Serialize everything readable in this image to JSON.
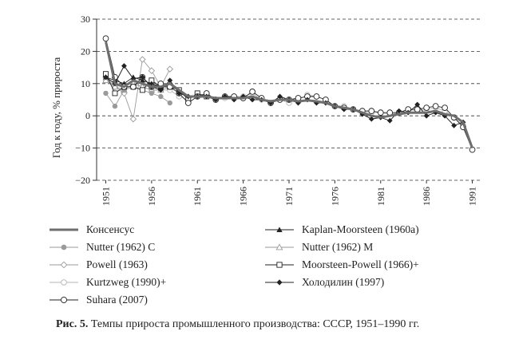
{
  "chart_data": {
    "type": "line",
    "ylabel": "Год к году, % прироста",
    "xlabel": "",
    "xlim": [
      1950,
      1992
    ],
    "ylim": [
      -20,
      30
    ],
    "yticks": [
      "30",
      "20",
      "10",
      "0",
      "−10",
      "−20"
    ],
    "xticks": [
      "1951",
      "1956",
      "1961",
      "1966",
      "1971",
      "1976",
      "1981",
      "1986",
      "1991"
    ],
    "grid": "horizontal-dashed",
    "legend_position": "bottom",
    "series": [
      {
        "name": "Консенсус",
        "style": "consensus",
        "x": [
          1951,
          1952,
          1953,
          1954,
          1955,
          1956,
          1957,
          1958,
          1959,
          1960,
          1961,
          1962,
          1963,
          1964,
          1965,
          1966,
          1967,
          1968,
          1969,
          1970,
          1971,
          1972,
          1973,
          1974,
          1975,
          1976,
          1977,
          1978,
          1979,
          1980,
          1981,
          1982,
          1983,
          1984,
          1985,
          1986,
          1987,
          1988,
          1989,
          1990,
          1991
        ],
        "y": [
          23,
          10,
          9,
          11,
          10,
          9,
          9,
          10,
          8,
          6,
          6,
          6,
          5.5,
          5.5,
          5.5,
          5.5,
          6,
          5,
          4.5,
          5,
          5,
          4.5,
          4.8,
          4.5,
          4,
          3,
          2.5,
          2,
          1,
          0,
          -0.5,
          0,
          0.5,
          1,
          1,
          1,
          1.5,
          0.5,
          0,
          -2,
          -10
        ]
      },
      {
        "name": "Kaplan-Moorsteen (1960a)",
        "style": "kaplan",
        "x": [
          1951,
          1952,
          1953,
          1954,
          1955,
          1956,
          1957,
          1958
        ],
        "y": [
          12,
          11,
          10,
          12,
          11,
          10,
          9,
          9
        ]
      },
      {
        "name": "Nutter (1962) C",
        "style": "nutterc",
        "x": [
          1951,
          1952,
          1953,
          1954,
          1955,
          1956,
          1957,
          1958
        ],
        "y": [
          7,
          3,
          8,
          9,
          8,
          7,
          6,
          4
        ]
      },
      {
        "name": "Nutter (1962) M",
        "style": "nutterm",
        "x": [
          1951,
          1952,
          1953,
          1954,
          1955,
          1956,
          1957,
          1958
        ],
        "y": [
          11,
          9,
          8,
          10,
          9,
          8,
          8,
          9
        ]
      },
      {
        "name": "Powell (1963)",
        "style": "powell",
        "x": [
          1951,
          1952,
          1953,
          1954,
          1955,
          1956,
          1957,
          1958
        ],
        "y": [
          12,
          9,
          7,
          -1,
          17.5,
          14,
          9,
          14.5
        ]
      },
      {
        "name": "Moorsteen-Powell (1966)+",
        "style": "mp",
        "x": [
          1951,
          1952,
          1953,
          1954,
          1955,
          1956,
          1957,
          1958,
          1959,
          1960,
          1961,
          1962
        ],
        "y": [
          13,
          7,
          9,
          9,
          8,
          11,
          9,
          9,
          8,
          5,
          7,
          6
        ]
      },
      {
        "name": "Kurtzweg (1990)+",
        "style": "kurtzweg",
        "x": [
          1951,
          1952,
          1953,
          1954,
          1955,
          1956,
          1957,
          1958,
          1959,
          1960,
          1961,
          1962,
          1963,
          1964,
          1965,
          1966,
          1967,
          1968,
          1969,
          1970,
          1971,
          1972,
          1973,
          1974,
          1975,
          1976,
          1977,
          1978,
          1979,
          1980,
          1981,
          1982,
          1983,
          1984,
          1985,
          1986,
          1987,
          1988,
          1989,
          1990
        ],
        "y": [
          11,
          9,
          8,
          10,
          9,
          8,
          8,
          8,
          6,
          5,
          7,
          6,
          5,
          5.5,
          6,
          6,
          7,
          5,
          4,
          5,
          4,
          5,
          6.5,
          6,
          5,
          3,
          3,
          2,
          1.5,
          1,
          1,
          0.5,
          1,
          2,
          1.5,
          2,
          2.5,
          1.5,
          -0.5,
          -3
        ]
      },
      {
        "name": "Холодилин (1997)",
        "style": "kholodilin",
        "x": [
          1951,
          1952,
          1953,
          1954,
          1955,
          1956,
          1957,
          1958,
          1959,
          1960,
          1961,
          1962,
          1963,
          1964,
          1965,
          1966,
          1967,
          1968,
          1969,
          1970,
          1971,
          1972,
          1973,
          1974,
          1975,
          1976,
          1977,
          1978,
          1979,
          1980,
          1981,
          1982,
          1983,
          1984,
          1985,
          1986,
          1987,
          1988,
          1989,
          1990
        ],
        "y": [
          12,
          10,
          15.5,
          11.5,
          12,
          9,
          8,
          11,
          7,
          6,
          6,
          6,
          5,
          6,
          5,
          6,
          5,
          5,
          4,
          6,
          5,
          4,
          5,
          4,
          4,
          3,
          2,
          2,
          0.5,
          -1,
          -0.5,
          -1.5,
          1.5,
          1,
          3.5,
          0,
          1,
          0,
          -3,
          -2
        ]
      },
      {
        "name": "Suhara (2007)",
        "style": "suhara",
        "x": [
          1951,
          1952,
          1953,
          1954,
          1955,
          1956,
          1957,
          1958,
          1959,
          1960,
          1961,
          1962,
          1963,
          1964,
          1965,
          1966,
          1967,
          1968,
          1969,
          1970,
          1971,
          1972,
          1973,
          1974,
          1975,
          1976,
          1977,
          1978,
          1979,
          1980,
          1981,
          1982,
          1983,
          1984,
          1985,
          1986,
          1987,
          1988,
          1989,
          1990,
          1991
        ],
        "y": [
          24,
          12,
          9,
          9,
          12,
          9,
          10,
          9,
          7,
          4,
          6,
          7,
          5,
          6,
          6,
          5.5,
          7.5,
          5.5,
          4,
          5,
          5,
          5.5,
          6,
          6,
          5,
          3,
          2.5,
          2,
          1.5,
          1.5,
          1,
          1,
          1,
          2,
          2,
          2.5,
          3,
          2.5,
          -0.5,
          -3.5,
          -10.5
        ]
      }
    ]
  },
  "legend": [
    {
      "label": "Консенсус",
      "style": "consensus"
    },
    {
      "label": "Kaplan-Moorsteen (1960a)",
      "style": "kaplan"
    },
    {
      "label": "Nutter (1962) C",
      "style": "nutterc"
    },
    {
      "label": "Nutter (1962) M",
      "style": "nutterm"
    },
    {
      "label": "Powell (1963)",
      "style": "powell"
    },
    {
      "label": "Moorsteen-Powell (1966)+",
      "style": "mp"
    },
    {
      "label": "Kurtzweg (1990)+",
      "style": "kurtzweg"
    },
    {
      "label": "Холодилин (1997)",
      "style": "kholodilin"
    },
    {
      "label": "Suhara (2007)",
      "style": "suhara"
    }
  ],
  "caption": {
    "label": "Рис. 5.",
    "text": " Темпы прироста промышленного производства: СССР, 1951–1990 гг."
  },
  "colors": {
    "consensus": "#6e6e6e",
    "ink": "#222222",
    "gray": "#9a9a9a",
    "light": "#b5b5b5"
  }
}
